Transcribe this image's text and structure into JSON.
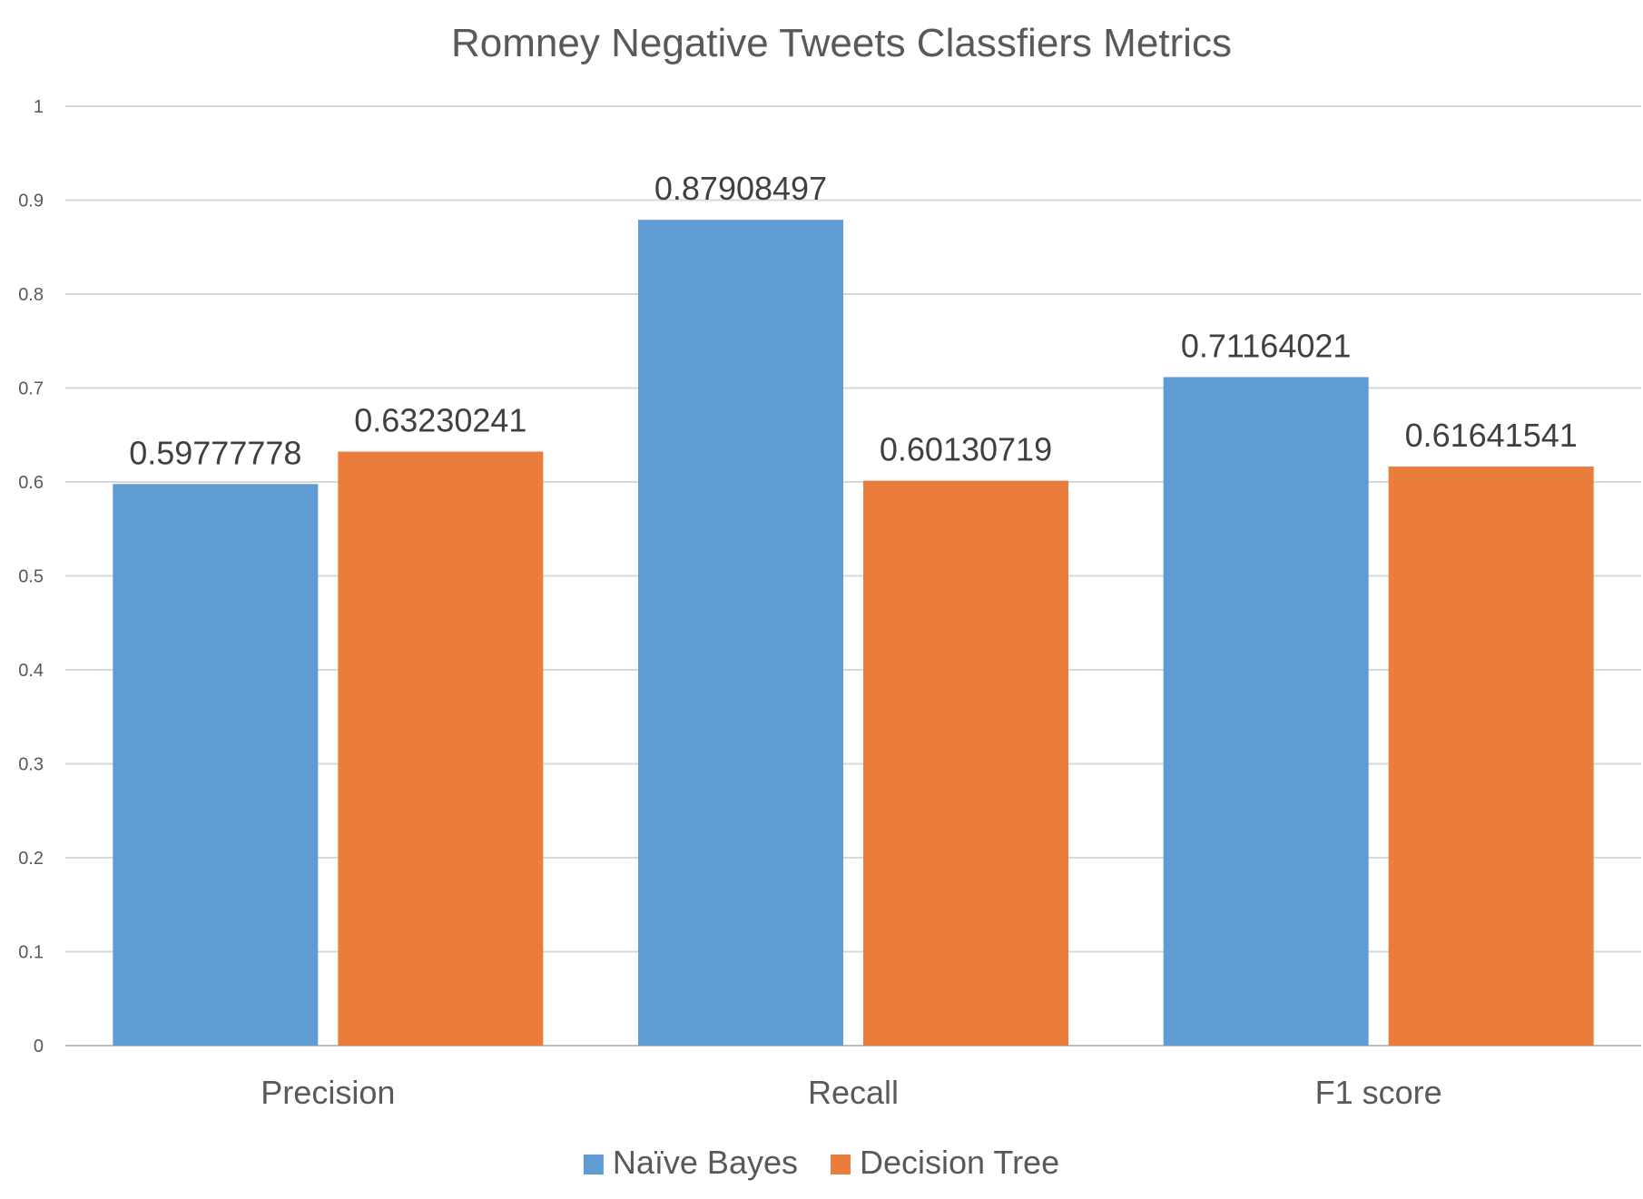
{
  "chart_data": {
    "type": "bar",
    "title": "Romney Negative Tweets Classfiers Metrics",
    "categories": [
      "Precision",
      "Recall",
      "F1 score"
    ],
    "series": [
      {
        "name": "Naïve Bayes",
        "values": [
          0.59777778,
          0.87908497,
          0.71164021
        ],
        "color": "#5e9cd3"
      },
      {
        "name": "Decision Tree",
        "values": [
          0.63230241,
          0.60130719,
          0.61641541
        ],
        "color": "#eb7d3c"
      }
    ],
    "data_labels": [
      [
        "0.59777778",
        "0.87908497",
        "0.71164021"
      ],
      [
        "0.63230241",
        "0.60130719",
        "0.61641541"
      ]
    ],
    "yticks": [
      "0",
      "0.1",
      "0.2",
      "0.3",
      "0.4",
      "0.5",
      "0.6",
      "0.7",
      "0.8",
      "0.9",
      "1"
    ],
    "ylim": [
      0,
      1
    ],
    "grid": true,
    "legend": "bottom-center"
  }
}
